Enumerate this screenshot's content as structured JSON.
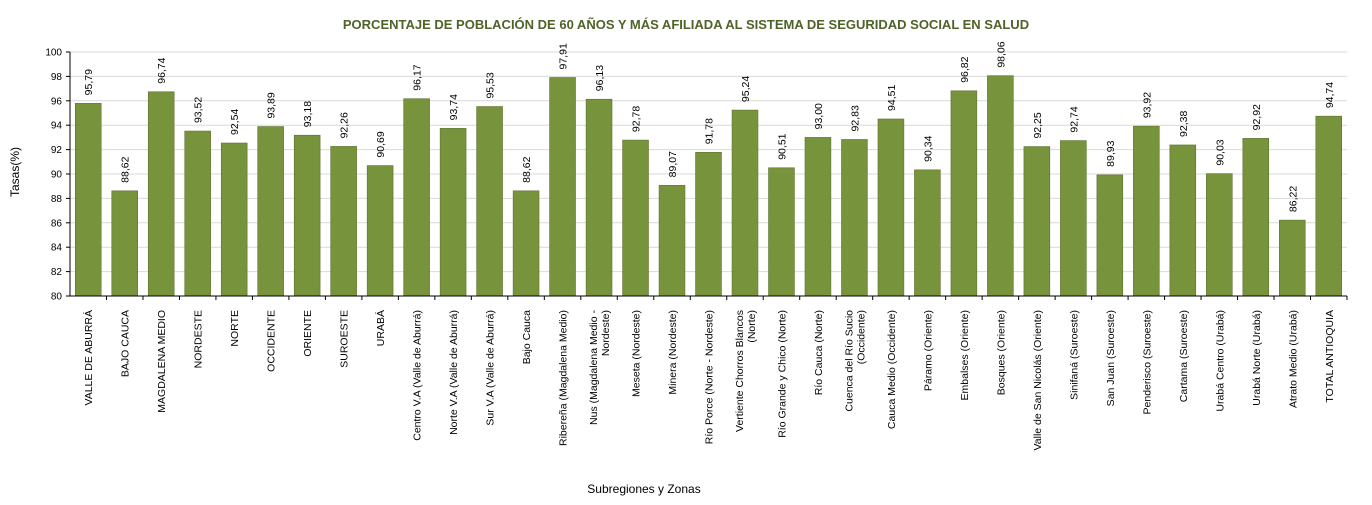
{
  "colors": {
    "bar": "#77933c",
    "title": "#4f6228",
    "grid": "#d9d9d9",
    "axis": "#000000"
  },
  "chart_data": {
    "type": "bar",
    "title": "PORCENTAJE DE POBLACIÓN DE 60 AÑOS Y MÁS  AFILIADA AL SISTEMA DE SEGURIDAD SOCIAL EN SALUD",
    "xlabel": "Subregiones y Zonas",
    "ylabel": "Tasas(%)",
    "ylim": [
      80,
      100
    ],
    "ytick_step": 2,
    "yticks": [
      "80",
      "82",
      "84",
      "86",
      "88",
      "90",
      "92",
      "94",
      "96",
      "98",
      "100"
    ],
    "grid": true,
    "legend": "none",
    "categories": [
      [
        "VALLE DE ABURRÁ"
      ],
      [
        "BAJO CAUCA"
      ],
      [
        "MAGDALENA MEDIO"
      ],
      [
        "NORDESTE"
      ],
      [
        "NORTE"
      ],
      [
        "OCCIDENTE"
      ],
      [
        "ORIENTE"
      ],
      [
        "SUROESTE"
      ],
      [
        "URABÁ"
      ],
      [
        "Centro V.A (Valle de Aburrá)"
      ],
      [
        "Norte V.A (Valle de Aburrá)"
      ],
      [
        "Sur  V.A (Valle de Aburrá)"
      ],
      [
        "Bajo Cauca"
      ],
      [
        "Ribereña  (Magdalena Medio)"
      ],
      [
        "Nus  (Magdalena Medio -",
        "Nordeste)"
      ],
      [
        "Meseta  (Nordeste)"
      ],
      [
        "Minera  (Nordeste)"
      ],
      [
        "Río Porce  (Norte - Nordeste)"
      ],
      [
        "Vertiente Chorros Blancos",
        "(Norte)"
      ],
      [
        "Río Grande y Chico  (Norte)"
      ],
      [
        "Río Cauca  (Norte)"
      ],
      [
        "Cuenca del Río Sucio",
        "(Occidente)"
      ],
      [
        "Cauca Medio  (Occidente)"
      ],
      [
        "Páramo  (Oriente)"
      ],
      [
        "Embalses  (Oriente)"
      ],
      [
        "Bosques  (Oriente)"
      ],
      [
        "Valle de San Nicolás (Oriente)"
      ],
      [
        "Sinifaná  (Suroeste)"
      ],
      [
        "San Juan  (Suroeste)"
      ],
      [
        "Penderisco  (Suroeste)"
      ],
      [
        "Cartama  (Suroeste)"
      ],
      [
        "Urabá Centro  (Urabá)"
      ],
      [
        "Urabá Norte  (Urabá)"
      ],
      [
        "Atrato Medio  (Urabá)"
      ],
      [
        "TOTAL ANTIOQUIA"
      ]
    ],
    "values": [
      95.79,
      88.62,
      96.74,
      93.52,
      92.54,
      93.89,
      93.18,
      92.26,
      90.69,
      96.17,
      93.74,
      95.53,
      88.62,
      97.91,
      96.13,
      92.78,
      89.07,
      91.78,
      95.24,
      90.51,
      93.0,
      92.83,
      94.51,
      90.34,
      96.82,
      98.06,
      92.25,
      92.74,
      89.93,
      93.92,
      92.38,
      90.03,
      92.92,
      86.22,
      94.74
    ],
    "data_labels": [
      "95,79",
      "88,62",
      "96,74",
      "93,52",
      "92,54",
      "93,89",
      "93,18",
      "92,26",
      "90,69",
      "96,17",
      "93,74",
      "95,53",
      "88,62",
      "97,91",
      "96,13",
      "92,78",
      "89,07",
      "91,78",
      "95,24",
      "90,51",
      "93,00",
      "92,83",
      "94,51",
      "90,34",
      "96,82",
      "98,06",
      "92,25",
      "92,74",
      "89,93",
      "93,92",
      "92,38",
      "90,03",
      "92,92",
      "86,22",
      "94,74"
    ]
  }
}
